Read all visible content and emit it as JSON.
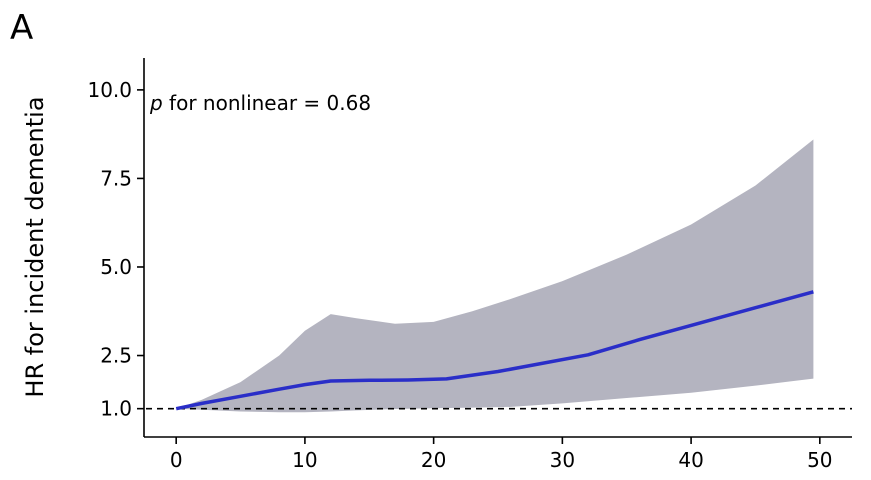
{
  "panel_label": "A",
  "chart_data": {
    "type": "line",
    "title": "",
    "xlabel": "",
    "ylabel": "HR for incident dementia",
    "xlim": [
      -2.5,
      52.5
    ],
    "ylim": [
      0.2,
      10.9
    ],
    "x_ticks": [
      0,
      10,
      20,
      30,
      40,
      50
    ],
    "x_tick_labels": [
      "0",
      "10",
      "20",
      "30",
      "40",
      "50"
    ],
    "y_ticks": [
      1.0,
      2.5,
      5.0,
      7.5,
      10.0
    ],
    "y_tick_labels": [
      "1.0",
      "2.5",
      "5.0",
      "7.5",
      "10.0"
    ],
    "reference_line": {
      "y": 1.0,
      "style": "dashed",
      "color": "#000000"
    },
    "annotation": {
      "italic": "p",
      "text": " for nonlinear = 0.68"
    },
    "grid": false,
    "series": [
      {
        "type": "line",
        "color": "#2a2ec8",
        "x": [
          0,
          2,
          5,
          8,
          10,
          12,
          15,
          18,
          21,
          25,
          28,
          32,
          36,
          40,
          45,
          49.5
        ],
        "y": [
          1.0,
          1.15,
          1.35,
          1.55,
          1.68,
          1.78,
          1.8,
          1.81,
          1.84,
          2.05,
          2.25,
          2.52,
          2.95,
          3.35,
          3.85,
          4.3
        ]
      },
      {
        "type": "band",
        "color": "#b4b4c0",
        "x": [
          0,
          2,
          5,
          8,
          10,
          12,
          14,
          17,
          20,
          23,
          26,
          30,
          35,
          40,
          45,
          49.5
        ],
        "lower": [
          1.0,
          0.97,
          0.92,
          0.9,
          0.9,
          0.92,
          0.95,
          0.99,
          1.01,
          1.03,
          1.05,
          1.15,
          1.3,
          1.45,
          1.65,
          1.85
        ],
        "upper": [
          1.0,
          1.25,
          1.75,
          2.5,
          3.2,
          3.67,
          3.55,
          3.4,
          3.45,
          3.75,
          4.1,
          4.6,
          5.35,
          6.2,
          7.3,
          8.6
        ]
      }
    ]
  }
}
